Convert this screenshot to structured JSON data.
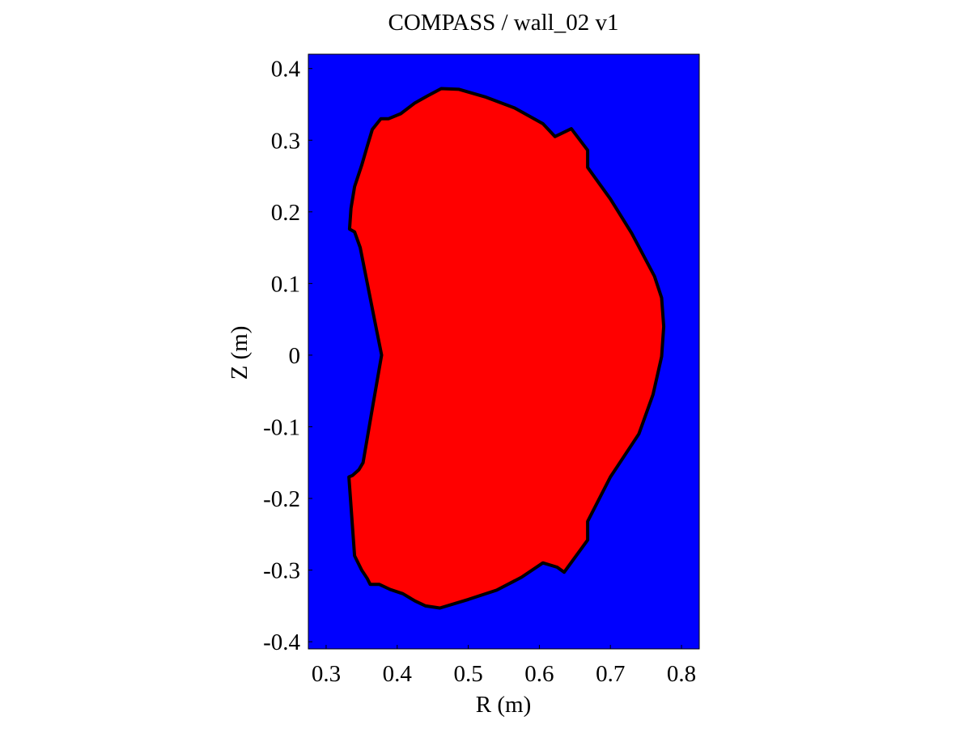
{
  "chart_data": {
    "type": "area",
    "title": "COMPASS / wall_02  v1",
    "xlabel": "R (m)",
    "ylabel": "Z (m)",
    "xlim": [
      0.275,
      0.825
    ],
    "ylim": [
      -0.41,
      0.42
    ],
    "xticks": [
      "0.3",
      "0.4",
      "0.5",
      "0.6",
      "0.7",
      "0.8"
    ],
    "yticks": [
      "0.4",
      "0.3",
      "0.2",
      "0.1",
      "0",
      "-0.1",
      "-0.2",
      "-0.3",
      "-0.4"
    ],
    "grid": false,
    "background_color": "#0000ff",
    "fill_color": "#ff0000",
    "outline_color": "#000000",
    "wall_outline": {
      "r": [
        0.462,
        0.487,
        0.525,
        0.565,
        0.605,
        0.622,
        0.645,
        0.668,
        0.668,
        0.7,
        0.73,
        0.762,
        0.772,
        0.775,
        0.772,
        0.76,
        0.74,
        0.7,
        0.668,
        0.668,
        0.635,
        0.625,
        0.605,
        0.575,
        0.54,
        0.5,
        0.46,
        0.44,
        0.425,
        0.408,
        0.39,
        0.375,
        0.362,
        0.358,
        0.35,
        0.345,
        0.34,
        0.332,
        0.337,
        0.346,
        0.352,
        0.364,
        0.378,
        0.378,
        0.37,
        0.348,
        0.34,
        0.333,
        0.335,
        0.34,
        0.35,
        0.358,
        0.365,
        0.377,
        0.388,
        0.405,
        0.425,
        0.443
      ],
      "z": [
        0.372,
        0.371,
        0.36,
        0.345,
        0.323,
        0.305,
        0.316,
        0.286,
        0.262,
        0.218,
        0.17,
        0.11,
        0.08,
        0.04,
        -0.002,
        -0.055,
        -0.11,
        -0.17,
        -0.232,
        -0.258,
        -0.303,
        -0.296,
        -0.29,
        -0.31,
        -0.328,
        -0.341,
        -0.353,
        -0.35,
        -0.343,
        -0.333,
        -0.327,
        -0.32,
        -0.32,
        -0.312,
        -0.3,
        -0.29,
        -0.28,
        -0.17,
        -0.168,
        -0.16,
        -0.15,
        -0.08,
        0.0,
        0.0,
        0.04,
        0.15,
        0.172,
        0.176,
        0.205,
        0.235,
        0.265,
        0.292,
        0.315,
        0.33,
        0.33,
        0.337,
        0.352,
        0.362
      ]
    }
  }
}
